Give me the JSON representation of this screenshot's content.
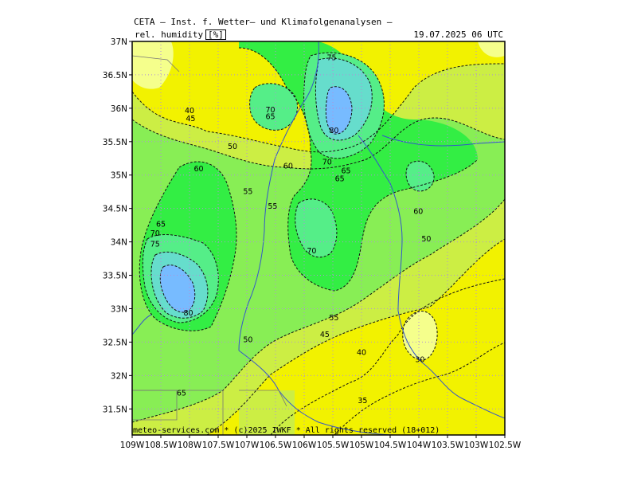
{
  "header": {
    "title": "CETA — Inst. f. Wetter— und Klimafolgenanalysen —",
    "parameter": "rel. humidity",
    "unit": "[%]",
    "valid_time": "19.07.2025 06 UTC"
  },
  "footer": {
    "copyright": "meteo-services.com * (c)2025 IWKF * All rights reserved (18+012)"
  },
  "axes": {
    "lon_labels": [
      "109W",
      "108.5W",
      "108W",
      "107.5W",
      "107W",
      "106.5W",
      "106W",
      "105.5W",
      "105W",
      "104.5W",
      "104W",
      "103.5W",
      "103W",
      "102.5W"
    ],
    "lat_labels": [
      "37N",
      "36.5N",
      "36N",
      "35.5N",
      "35N",
      "34.5N",
      "34N",
      "33.5N",
      "33N",
      "32.5N",
      "32N",
      "31.5N"
    ]
  },
  "contour_labels": [
    {
      "text": "75",
      "lon": -105.52,
      "lat": 36.76
    },
    {
      "text": "70",
      "lon": -106.59,
      "lat": 35.98
    },
    {
      "text": "65",
      "lon": -106.59,
      "lat": 35.88
    },
    {
      "text": "80",
      "lon": -105.48,
      "lat": 35.67
    },
    {
      "text": "70",
      "lon": -105.6,
      "lat": 35.2
    },
    {
      "text": "65",
      "lon": -105.27,
      "lat": 35.07
    },
    {
      "text": "65",
      "lon": -105.38,
      "lat": 34.95
    },
    {
      "text": "60",
      "lon": -106.28,
      "lat": 35.14
    },
    {
      "text": "40",
      "lon": -108.0,
      "lat": 35.97
    },
    {
      "text": "45",
      "lon": -107.98,
      "lat": 35.85
    },
    {
      "text": "50",
      "lon": -107.25,
      "lat": 35.43
    },
    {
      "text": "60",
      "lon": -107.84,
      "lat": 35.1
    },
    {
      "text": "55",
      "lon": -106.98,
      "lat": 34.76
    },
    {
      "text": "55",
      "lon": -106.55,
      "lat": 34.54
    },
    {
      "text": "60",
      "lon": -104.01,
      "lat": 34.46
    },
    {
      "text": "50",
      "lon": -103.87,
      "lat": 34.05
    },
    {
      "text": "70",
      "lon": -105.87,
      "lat": 33.87
    },
    {
      "text": "65",
      "lon": -108.5,
      "lat": 34.27
    },
    {
      "text": "70",
      "lon": -108.6,
      "lat": 34.13
    },
    {
      "text": "75",
      "lon": -108.6,
      "lat": 33.97
    },
    {
      "text": "80",
      "lon": -108.02,
      "lat": 32.94
    },
    {
      "text": "55",
      "lon": -105.48,
      "lat": 32.87
    },
    {
      "text": "45",
      "lon": -105.64,
      "lat": 32.62
    },
    {
      "text": "40",
      "lon": -105.0,
      "lat": 32.35
    },
    {
      "text": "50",
      "lon": -106.98,
      "lat": 32.54
    },
    {
      "text": "30",
      "lon": -103.98,
      "lat": 32.24
    },
    {
      "text": "65",
      "lon": -108.14,
      "lat": 31.74
    },
    {
      "text": "35",
      "lon": -104.98,
      "lat": 31.63
    }
  ],
  "colors": {
    "h30": "#f5ff8c",
    "h35_45": "#f2f200",
    "h45_55": "#ccee44",
    "h55_65": "#88ee55",
    "h65_70": "#33ee44",
    "h70_75": "#55ee88",
    "h75_80": "#66ddcc",
    "h80plus": "#77bbff",
    "grid": "#b090d8",
    "rivers": "#3355cc",
    "borders": "#888888"
  }
}
